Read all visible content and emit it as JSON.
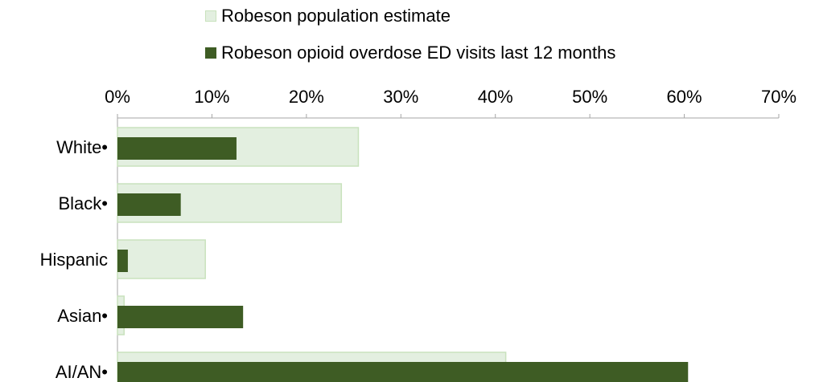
{
  "chart_data": {
    "type": "bar",
    "orientation": "horizontal",
    "categories": [
      "White•",
      "Black•",
      "Hispanic",
      "Asian•",
      "AI/AN•"
    ],
    "series": [
      {
        "name": "Robeson population estimate",
        "values": [
          25.5,
          23.7,
          9.3,
          0.7,
          41.1
        ],
        "color": "#e3efe0",
        "stroke": "#c9e2bd"
      },
      {
        "name": "Robeson opioid overdose ED visits last 12 months",
        "values": [
          12.6,
          6.7,
          1.1,
          13.3,
          60.4
        ],
        "color": "#3e5c24"
      }
    ],
    "xlim": [
      0,
      70
    ],
    "xticks": [
      0,
      10,
      20,
      30,
      40,
      50,
      60,
      70
    ],
    "tick_format": "percent",
    "axis_position": "top",
    "legend_position": "top",
    "grid": false
  }
}
